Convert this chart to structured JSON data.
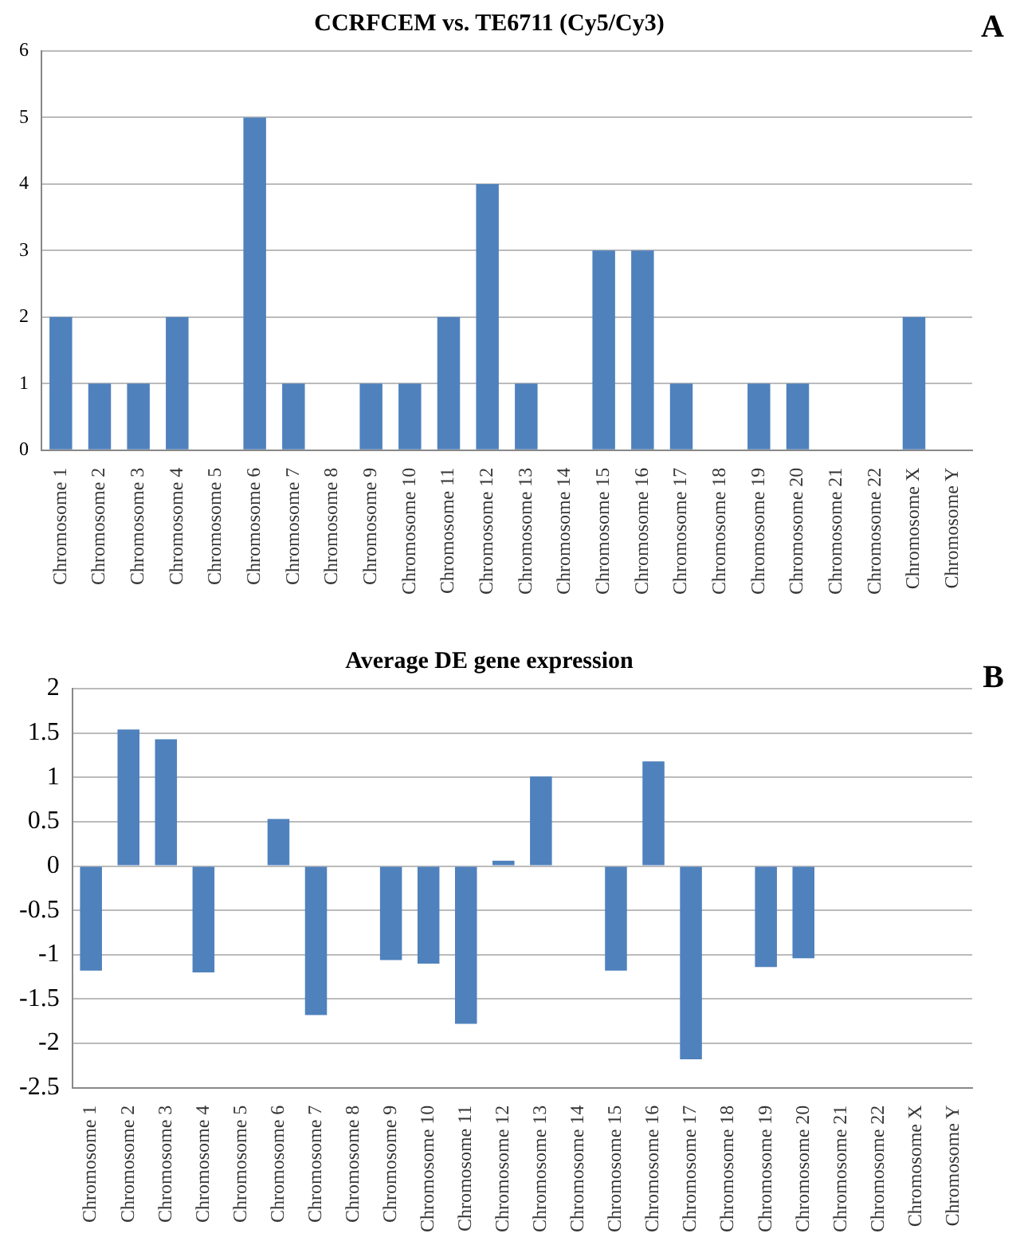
{
  "chart_data": [
    {
      "type": "bar",
      "title": "CCRFCEM vs. TE6711 (Cy5/Cy3)",
      "annotations": [
        "A"
      ],
      "categories": [
        "Chromosome 1",
        "Chromosome 2",
        "Chromosome 3",
        "Chromosome 4",
        "Chromosome 5",
        "Chromosome 6",
        "Chromosome 7",
        "Chromosome 8",
        "Chromosome 9",
        "Chromosome 10",
        "Chromosome 11",
        "Chromosome 12",
        "Chromosome 13",
        "Chromosome 14",
        "Chromosome 15",
        "Chromosome 16",
        "Chromosome 17",
        "Chromosome 18",
        "Chromosome 19",
        "Chromosome 20",
        "Chromosome 21",
        "Chromosome 22",
        "Chromosome X",
        "Chromosome Y"
      ],
      "values": [
        2,
        1,
        1,
        2,
        0,
        5,
        1,
        0,
        1,
        1,
        2,
        4,
        1,
        0,
        3,
        3,
        1,
        0,
        1,
        1,
        0,
        0,
        2,
        0
      ],
      "color": "#4f81bd",
      "ylim": [
        0,
        6
      ],
      "yticks": [
        0,
        1,
        2,
        3,
        4,
        5,
        6
      ],
      "grid": "y",
      "legend": false
    },
    {
      "type": "bar",
      "title": "Average DE gene expression",
      "annotations": [
        "B"
      ],
      "categories": [
        "Chromosome 1",
        "Chromosome 2",
        "Chromosome 3",
        "Chromosome 4",
        "Chromosome 5",
        "Chromosome 6",
        "Chromosome 7",
        "Chromosome 8",
        "Chromosome 9",
        "Chromosome 10",
        "Chromosome 11",
        "Chromosome 12",
        "Chromosome 13",
        "Chromosome 14",
        "Chromosome 15",
        "Chromosome 16",
        "Chromosome 17",
        "Chromosome 18",
        "Chromosome 19",
        "Chromosome 20",
        "Chromosome 21",
        "Chromosome 22",
        "Chromosome X",
        "Chromosome Y"
      ],
      "values": [
        -1.18,
        1.54,
        1.43,
        -1.2,
        0,
        0.53,
        -1.68,
        0,
        -1.06,
        -1.1,
        -1.78,
        0.06,
        1.01,
        0,
        -1.18,
        1.18,
        -2.18,
        0,
        -1.14,
        -1.04,
        0,
        0,
        0,
        0
      ],
      "color": "#4f81bd",
      "ylim": [
        -2.5,
        2
      ],
      "yticks": [
        -2.5,
        -2,
        -1.5,
        -1,
        -0.5,
        0,
        0.5,
        1,
        1.5,
        2
      ],
      "grid": "y",
      "legend": false
    }
  ]
}
